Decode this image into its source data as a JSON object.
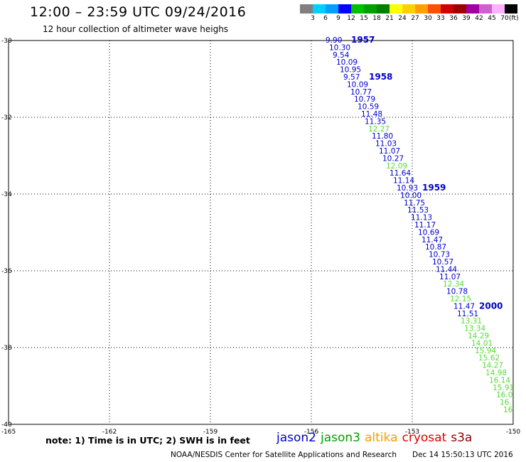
{
  "header": {
    "title": "12:00 – 23:59 UTC 09/24/2016",
    "subtitle": "12 hour collection of altimeter wave heighs"
  },
  "color_scale": {
    "labels": [
      "3",
      "6",
      "9",
      "12",
      "15",
      "18",
      "21",
      "24",
      "27",
      "30",
      "33",
      "36",
      "39",
      "42",
      "45",
      "70"
    ],
    "unit": "(ft)",
    "colors": [
      "#7f7f7f",
      "#00d0ff",
      "#00a0ff",
      "#0000ff",
      "#00c000",
      "#00a000",
      "#008000",
      "#ffff00",
      "#ffd000",
      "#ffa000",
      "#ff5000",
      "#d00000",
      "#a00000",
      "#a000a0",
      "#d060d0",
      "#ffb0ff",
      "#000000"
    ]
  },
  "map": {
    "lat_labels": [
      "-30",
      "-32",
      "-34",
      "-36",
      "-38",
      "-40"
    ],
    "lon_labels": [
      "-165",
      "-162",
      "-159",
      "-156",
      "-153",
      "-150"
    ],
    "lat_values": [
      -30,
      -32,
      -34,
      -36,
      -38,
      -40
    ],
    "lon_values": [
      -165,
      -162,
      -159,
      -156,
      -153,
      -150
    ],
    "time_labels": [
      "1957",
      "1958",
      "1959",
      "2000"
    ],
    "observations": [
      {
        "v": "9.90",
        "c": "blue"
      },
      {
        "v": "10.30",
        "c": "blue"
      },
      {
        "v": "9.54",
        "c": "blue"
      },
      {
        "v": "10.09",
        "c": "blue"
      },
      {
        "v": "10.95",
        "c": "blue"
      },
      {
        "v": "9.57",
        "c": "blue"
      },
      {
        "v": "10.09",
        "c": "blue"
      },
      {
        "v": "10.77",
        "c": "blue"
      },
      {
        "v": "10.79",
        "c": "blue"
      },
      {
        "v": "10.59",
        "c": "blue"
      },
      {
        "v": "11.48",
        "c": "blue"
      },
      {
        "v": "11.35",
        "c": "blue"
      },
      {
        "v": "12.27",
        "c": "green"
      },
      {
        "v": "11.80",
        "c": "blue"
      },
      {
        "v": "11.03",
        "c": "blue"
      },
      {
        "v": "11.07",
        "c": "blue"
      },
      {
        "v": "10.27",
        "c": "blue"
      },
      {
        "v": "12.09",
        "c": "green"
      },
      {
        "v": "11.64",
        "c": "blue"
      },
      {
        "v": "11.14",
        "c": "blue"
      },
      {
        "v": "10.93",
        "c": "blue"
      },
      {
        "v": "10.00",
        "c": "blue"
      },
      {
        "v": "11.75",
        "c": "blue"
      },
      {
        "v": "11.53",
        "c": "blue"
      },
      {
        "v": "11.13",
        "c": "blue"
      },
      {
        "v": "11.17",
        "c": "blue"
      },
      {
        "v": "10.69",
        "c": "blue"
      },
      {
        "v": "11.47",
        "c": "blue"
      },
      {
        "v": "10.87",
        "c": "blue"
      },
      {
        "v": "10.73",
        "c": "blue"
      },
      {
        "v": "10.57",
        "c": "blue"
      },
      {
        "v": "11.44",
        "c": "blue"
      },
      {
        "v": "11.07",
        "c": "blue"
      },
      {
        "v": "12.34",
        "c": "green"
      },
      {
        "v": "10.78",
        "c": "blue"
      },
      {
        "v": "12.15",
        "c": "green"
      },
      {
        "v": "11.47",
        "c": "blue"
      },
      {
        "v": "11.51",
        "c": "blue"
      },
      {
        "v": "13.31",
        "c": "green"
      },
      {
        "v": "13.34",
        "c": "green"
      },
      {
        "v": "14.29",
        "c": "green"
      },
      {
        "v": "14.01",
        "c": "green"
      },
      {
        "v": "15.94",
        "c": "green"
      },
      {
        "v": "15.62",
        "c": "green"
      },
      {
        "v": "14.27",
        "c": "green"
      },
      {
        "v": "14.98",
        "c": "green"
      },
      {
        "v": "16.14",
        "c": "green"
      },
      {
        "v": "15.91",
        "c": "green"
      },
      {
        "v": "16.0",
        "c": "green"
      },
      {
        "v": "16.",
        "c": "green"
      },
      {
        "v": "16",
        "c": "green"
      }
    ]
  },
  "footer": {
    "note": "note: 1) Time is in UTC; 2) SWH is in feet",
    "satellites": [
      {
        "name": "jason2",
        "color": "#0000cc"
      },
      {
        "name": "jason3",
        "color": "#00a000"
      },
      {
        "name": "altika",
        "color": "#ff9900"
      },
      {
        "name": "cryosat",
        "color": "#dd0000"
      },
      {
        "name": "s3a",
        "color": "#880000"
      }
    ],
    "credit": "NOAA/NESDIS Center for Satellite Applications and Research",
    "timestamp": "Dec 14 15:50:13 UTC 2016"
  }
}
